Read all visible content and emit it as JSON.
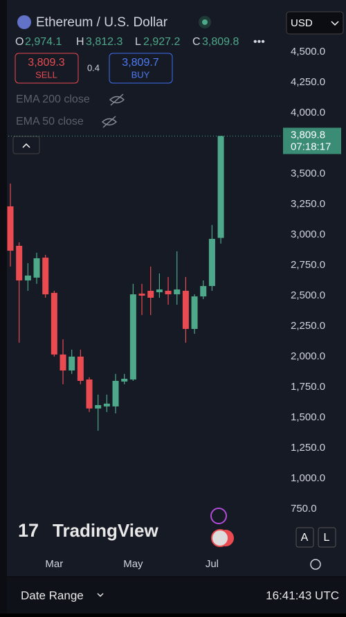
{
  "header": {
    "symbol": "Ethereum / U.S. Dollar",
    "currency": "USD",
    "ohlc_prefixes": [
      "O",
      "H",
      "L",
      "C"
    ],
    "ohlc_labels": [
      "2,974.1",
      "3,812.3",
      "2,927.2",
      "3,809.8"
    ],
    "sell_price": "3,809.3",
    "sell_label": "SELL",
    "spread": "0.4",
    "buy_price": "3,809.7",
    "buy_label": "BUY",
    "indicators": [
      "EMA 200 close",
      "EMA 50 close"
    ]
  },
  "chart_data": {
    "type": "candlestick",
    "categories": [
      null,
      null,
      null,
      null,
      null,
      "Mar",
      null,
      null,
      null,
      null,
      null,
      null,
      null,
      null,
      "May",
      null,
      null,
      null,
      null,
      null,
      null,
      null,
      null,
      "Jul",
      null
    ],
    "series": [
      {
        "name": "ETHUSD",
        "up_color": "#4ea88a",
        "down_color": "#e94b51",
        "open": [
          3233,
          2909,
          2625,
          2648,
          2812,
          2523,
          2017,
          1886,
          2000,
          1812,
          1574,
          1591,
          1591,
          1795,
          1812,
          2517,
          2540,
          2528,
          2540,
          2511,
          2540,
          2227,
          2494,
          2579,
          2974.1
        ],
        "high": [
          3420,
          2937,
          2767,
          2852,
          2835,
          2540,
          2142,
          2057,
          2057,
          1830,
          1688,
          1688,
          1858,
          1858,
          2597,
          2597,
          2739,
          2682,
          2653,
          2864,
          2653,
          2511,
          2625,
          3080,
          3812.3
        ],
        "low": [
          2739,
          2114,
          2540,
          2597,
          2483,
          2000,
          1773,
          1858,
          1773,
          1545,
          1392,
          1545,
          1534,
          1773,
          1801,
          2341,
          2341,
          2483,
          2426,
          2426,
          2114,
          2187,
          2472,
          2540,
          2927.2
        ],
        "close": [
          2869,
          2625,
          2665,
          2807,
          2511,
          2017,
          1886,
          2000,
          1801,
          1574,
          1602,
          1614,
          1801,
          1818,
          2511,
          2500,
          2483,
          2551,
          2511,
          2551,
          2227,
          2494,
          2579,
          2966,
          3809.8
        ]
      }
    ],
    "last_price": 3809.8,
    "last_price_label": "3,809.8",
    "countdown": "07:18:17",
    "ylim": [
      437,
      4841
    ],
    "yticks": [
      {
        "value": 750,
        "label": "750.0"
      },
      {
        "value": 1000,
        "label": "1,000.0"
      },
      {
        "value": 1250,
        "label": "1,250.0"
      },
      {
        "value": 1500,
        "label": "1,500.0"
      },
      {
        "value": 1750,
        "label": "1,750.0"
      },
      {
        "value": 2000,
        "label": "2,000.0"
      },
      {
        "value": 2250,
        "label": "2,250.0"
      },
      {
        "value": 2500,
        "label": "2,500.0"
      },
      {
        "value": 2750,
        "label": "2,750.0"
      },
      {
        "value": 3000,
        "label": "3,000.0"
      },
      {
        "value": 3250,
        "label": "3,250.0"
      },
      {
        "value": 3500,
        "label": "3,500.0"
      },
      {
        "value": 4000,
        "label": "4,000.0"
      },
      {
        "value": 4250,
        "label": "4,250.0"
      },
      {
        "value": 4500,
        "label": "4,500.0"
      }
    ]
  },
  "watermark": "TradingView",
  "scale_buttons": [
    "A",
    "L"
  ],
  "footer": {
    "date_range": "Date Range",
    "clock": "16:41:43 UTC"
  }
}
